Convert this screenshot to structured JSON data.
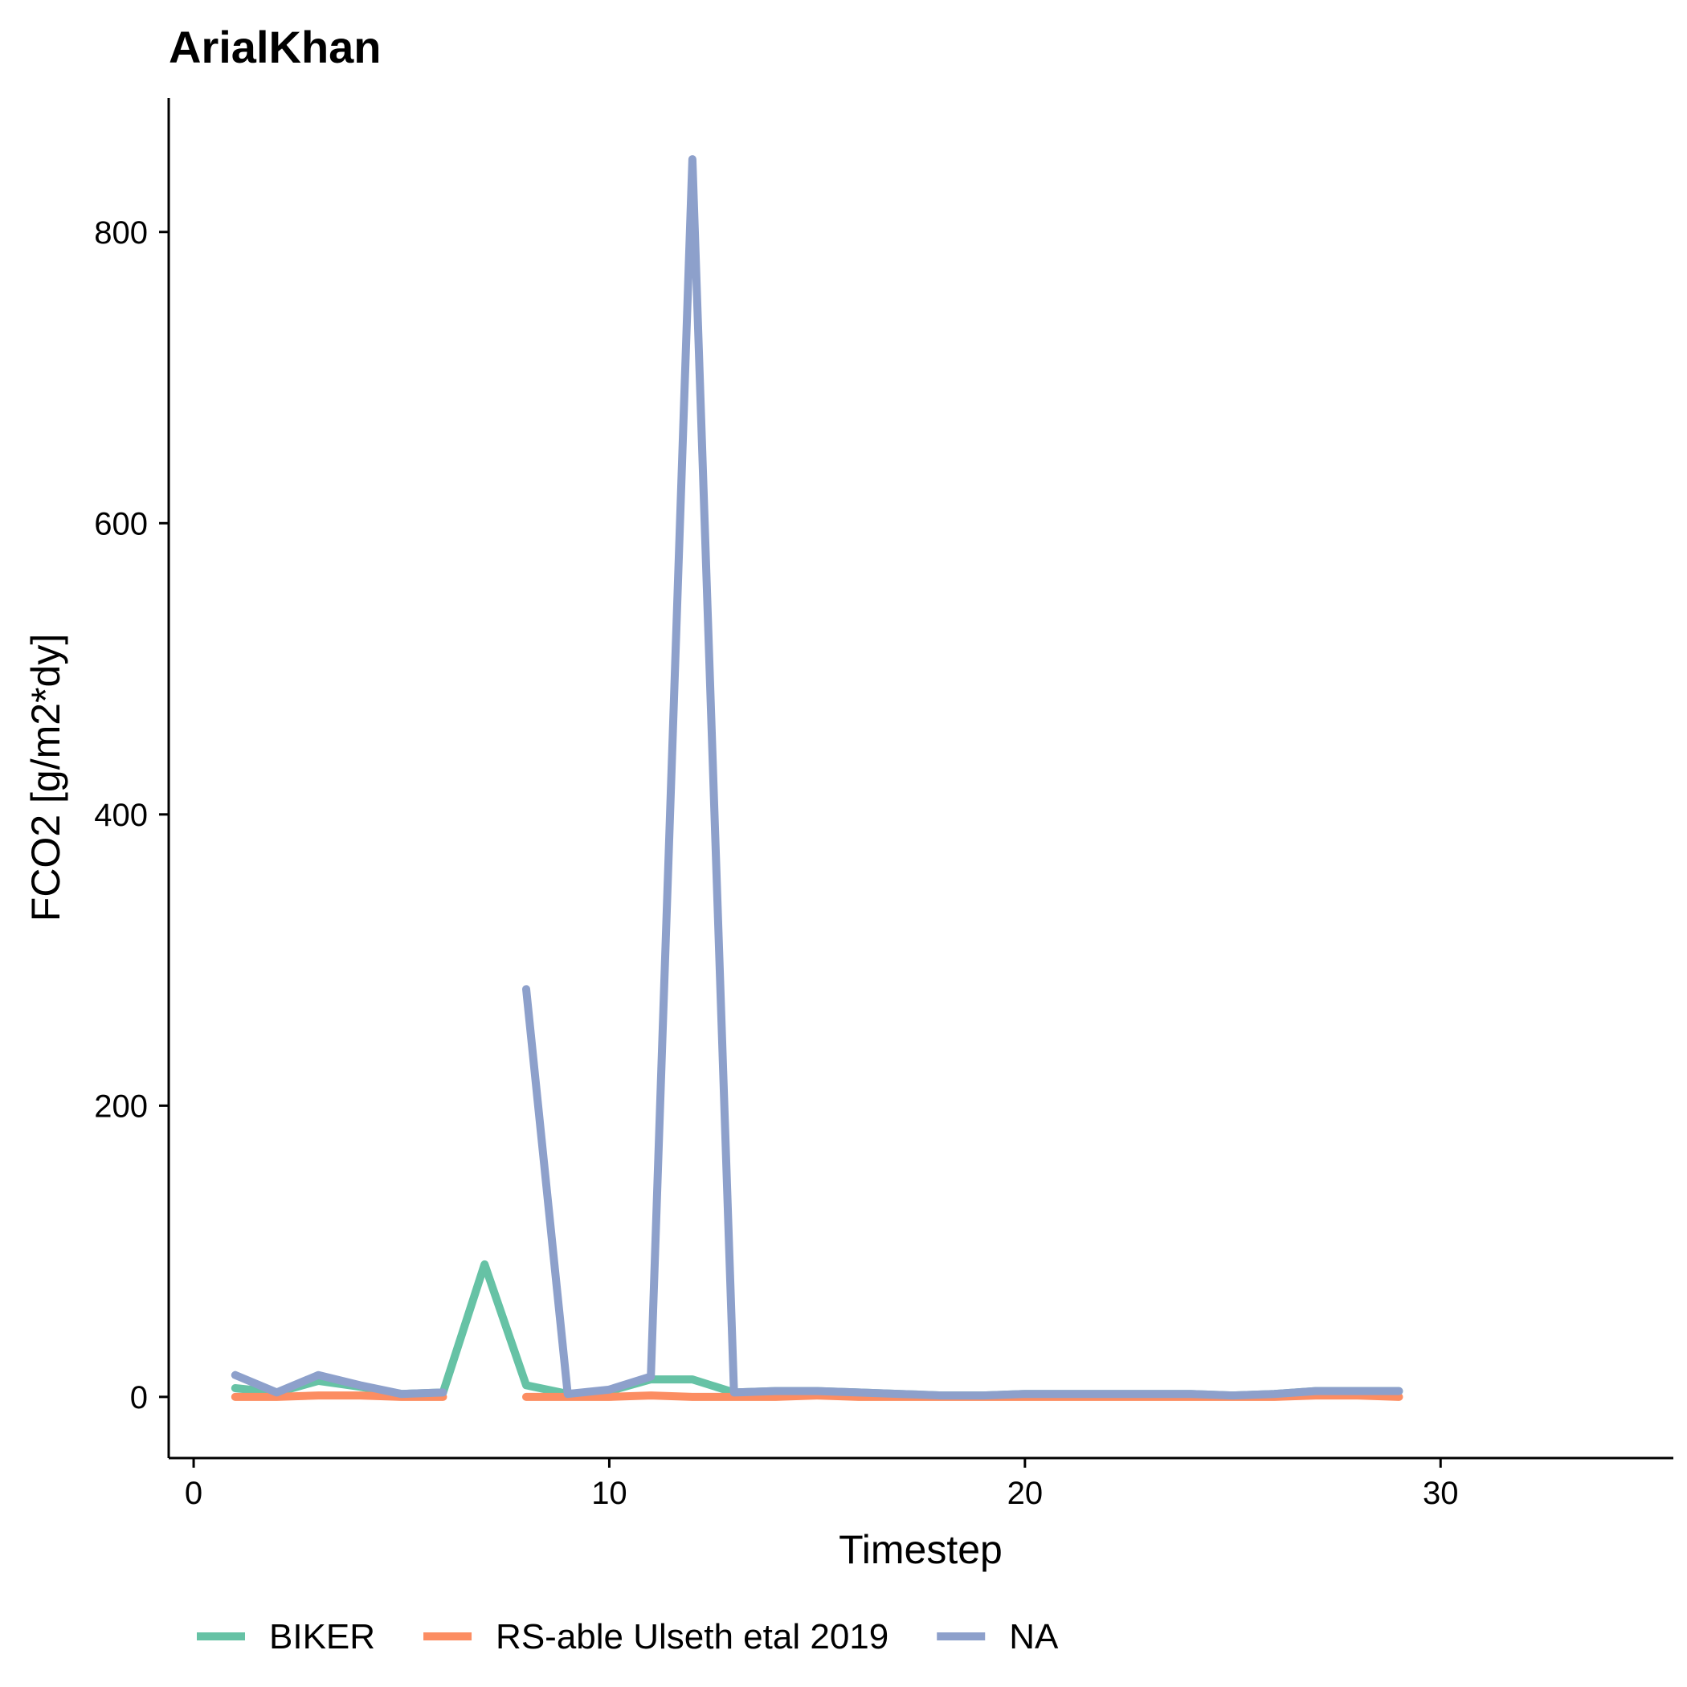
{
  "chart_data": {
    "type": "line",
    "title": "ArialKhan",
    "xlabel": "Timestep",
    "ylabel": "FCO2 [g/m2*dy]",
    "xlim": [
      -0.6,
      35.6
    ],
    "ylim": [
      -42,
      892
    ],
    "xticks": [
      0,
      10,
      20,
      30
    ],
    "yticks": [
      0,
      200,
      400,
      600,
      800
    ],
    "grid": false,
    "legend_position": "bottom",
    "series": [
      {
        "name": "BIKER",
        "color": "#66c2a5",
        "segments": [
          [
            [
              1,
              6
            ],
            [
              2,
              3
            ],
            [
              3,
              11
            ],
            [
              4,
              7
            ],
            [
              5,
              2
            ],
            [
              6,
              3
            ],
            [
              7,
              91
            ],
            [
              8,
              8
            ],
            [
              9,
              2
            ],
            [
              10,
              4
            ],
            [
              11,
              12
            ],
            [
              12,
              12
            ],
            [
              13,
              3
            ],
            [
              14,
              4
            ],
            [
              15,
              4
            ],
            [
              16,
              3
            ],
            [
              17,
              2
            ],
            [
              18,
              1
            ],
            [
              19,
              1
            ],
            [
              20,
              2
            ],
            [
              21,
              2
            ],
            [
              22,
              2
            ],
            [
              23,
              2
            ],
            [
              24,
              2
            ],
            [
              25,
              1
            ],
            [
              26,
              2
            ],
            [
              27,
              4
            ],
            [
              28,
              4
            ],
            [
              29,
              4
            ]
          ]
        ]
      },
      {
        "name": "RS-able Ulseth etal 2019",
        "color": "#fc8d62",
        "segments": [
          [
            [
              1,
              0
            ],
            [
              2,
              0
            ],
            [
              3,
              1
            ],
            [
              4,
              1
            ],
            [
              5,
              0
            ],
            [
              6,
              0
            ]
          ],
          [
            [
              8,
              0
            ],
            [
              9,
              0
            ],
            [
              10,
              0
            ],
            [
              11,
              1
            ],
            [
              12,
              0
            ],
            [
              13,
              0
            ],
            [
              14,
              0
            ],
            [
              15,
              1
            ],
            [
              16,
              0
            ],
            [
              17,
              0
            ],
            [
              18,
              0
            ],
            [
              19,
              0
            ],
            [
              20,
              0
            ],
            [
              21,
              0
            ],
            [
              22,
              0
            ],
            [
              23,
              0
            ],
            [
              24,
              0
            ],
            [
              25,
              0
            ],
            [
              26,
              0
            ],
            [
              27,
              1
            ],
            [
              28,
              1
            ],
            [
              29,
              0
            ]
          ]
        ]
      },
      {
        "name": "NA",
        "color": "#8da0cb",
        "segments": [
          [
            [
              1,
              15
            ],
            [
              2,
              3
            ],
            [
              3,
              15
            ],
            [
              4,
              8
            ],
            [
              5,
              2
            ],
            [
              6,
              3
            ]
          ],
          [
            [
              8,
              280
            ],
            [
              9,
              2
            ],
            [
              10,
              5
            ],
            [
              11,
              14
            ],
            [
              12,
              850
            ],
            [
              13,
              3
            ],
            [
              14,
              4
            ],
            [
              15,
              4
            ],
            [
              16,
              3
            ],
            [
              17,
              2
            ],
            [
              18,
              1
            ],
            [
              19,
              1
            ],
            [
              20,
              2
            ],
            [
              21,
              2
            ],
            [
              22,
              2
            ],
            [
              23,
              2
            ],
            [
              24,
              2
            ],
            [
              25,
              1
            ],
            [
              26,
              2
            ],
            [
              27,
              4
            ],
            [
              28,
              4
            ],
            [
              29,
              4
            ]
          ]
        ]
      }
    ]
  }
}
